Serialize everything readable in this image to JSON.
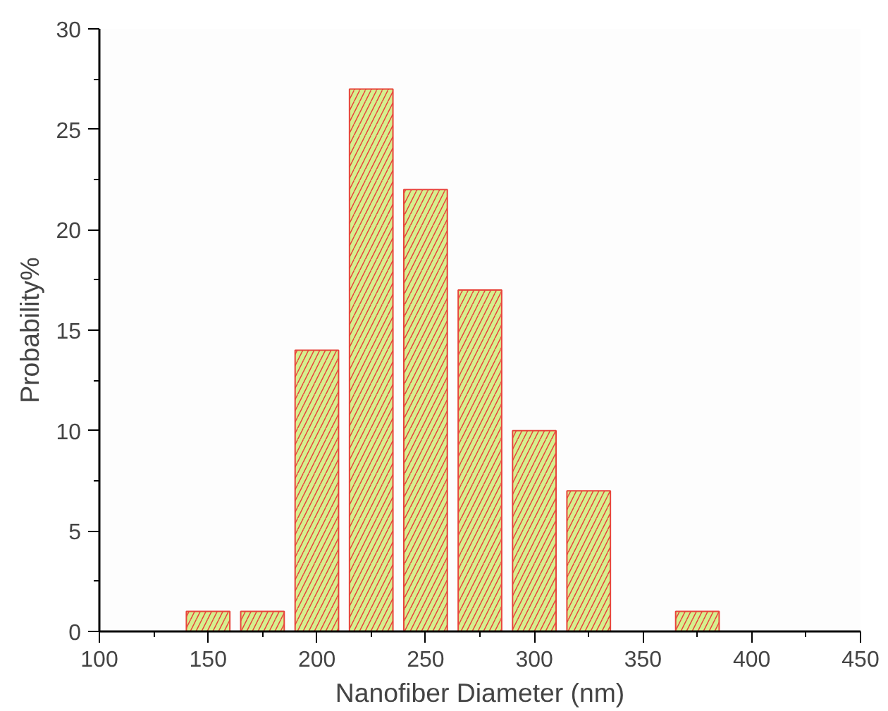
{
  "chart_data": {
    "type": "bar",
    "xlabel": "Nanofiber Diameter (nm)",
    "ylabel": "Probability%",
    "x": [
      150,
      175,
      200,
      225,
      250,
      275,
      300,
      325,
      375
    ],
    "values": [
      1,
      1,
      14,
      27,
      22,
      17,
      10,
      7,
      1
    ],
    "color": "#d6f08e",
    "xlim": [
      100,
      450
    ],
    "xticks": [
      100,
      150,
      200,
      250,
      300,
      350,
      400,
      450
    ],
    "ylim": [
      0,
      30
    ],
    "yticks": [
      0,
      5,
      10,
      15,
      20,
      25,
      30
    ],
    "grid": false
  }
}
